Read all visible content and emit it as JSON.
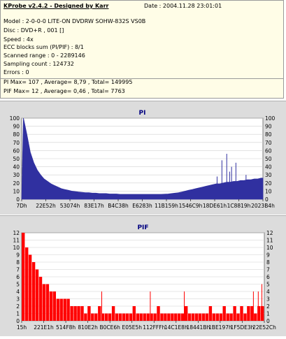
{
  "header": {
    "title": "KProbe v2.4.2 - Designed by Karr",
    "date": "Date : 2004.11.28 23:01:01",
    "lines": [
      "Model : 2-0-0-0 LITE-ON DVDRW SOHW-832S  VS0B",
      "Disc : DVD+R , 001 []",
      "Speed : 4x",
      "ECC blocks sum (PI/PIF) : 8/1",
      "Scanned range : 0 - 2289146",
      "Sampling count : 124732",
      "Errors : 0",
      "PI Max= 107 , Average= 8,79 , Total= 149995",
      "PIF Max= 12 , Average= 0,46 , Total= 7763"
    ]
  },
  "chart_data": [
    {
      "type": "area",
      "title": "PI",
      "color": "#3030a0",
      "ylim": [
        0,
        100
      ],
      "yticks": [
        0,
        10,
        20,
        30,
        40,
        50,
        60,
        70,
        80,
        90,
        100
      ],
      "xtick_labels": [
        "7Dh",
        "22E52h",
        "53074h",
        "83E17h",
        "B4C38h",
        "E6283h",
        "11B159h",
        "1546C9h",
        "18DE61h",
        "1C8819h",
        "2023B4h"
      ],
      "series": [
        {
          "values": [
            100,
            80,
            58,
            45,
            36,
            30,
            25,
            22,
            19,
            17,
            15,
            13,
            12,
            11,
            10,
            9.5,
            9,
            8.5,
            8,
            8,
            7.5,
            7.5,
            7,
            7,
            7,
            6.5,
            6.5,
            6.5,
            6,
            6,
            6,
            6,
            6,
            6,
            6,
            6,
            6,
            6,
            6,
            6,
            6,
            6.2,
            6.5,
            7,
            7.5,
            8,
            9,
            10,
            11,
            12,
            13,
            14,
            15,
            16,
            17,
            18,
            19,
            19,
            20,
            21,
            21,
            22,
            22,
            23,
            23,
            24,
            24,
            25,
            25,
            26
          ]
        }
      ],
      "spikes": [
        {
          "x_frac": 0.85,
          "value": 56
        },
        {
          "x_frac": 0.83,
          "value": 48
        },
        {
          "x_frac": 0.888,
          "value": 45
        },
        {
          "x_frac": 0.87,
          "value": 40
        },
        {
          "x_frac": 0.862,
          "value": 34
        },
        {
          "x_frac": 0.81,
          "value": 28
        },
        {
          "x_frac": 0.93,
          "value": 30
        }
      ]
    },
    {
      "type": "bar",
      "title": "PIF",
      "color": "#ff0000",
      "ylim": [
        0,
        12
      ],
      "yticks": [
        0,
        1,
        2,
        3,
        4,
        5,
        6,
        7,
        8,
        9,
        10,
        11,
        12
      ],
      "xtick_labels": [
        "15h",
        "221E1h",
        "514F8h",
        "810E2h",
        "B0CE6h",
        "E05E5h",
        "112FFFh",
        "14C1E8h",
        "18441Bh",
        "1BE197h",
        "1F5DE3h",
        "22E52Ch"
      ],
      "series": [
        {
          "values": [
            12,
            10,
            9,
            8,
            7,
            6,
            5,
            5,
            4,
            4,
            3,
            3,
            3,
            3,
            2,
            2,
            2,
            2,
            1,
            2,
            1,
            1,
            2,
            1,
            1,
            1,
            2,
            1,
            1,
            1,
            1,
            1,
            2,
            1,
            1,
            1,
            1,
            1,
            1,
            2,
            1,
            1,
            1,
            1,
            1,
            1,
            1,
            2,
            1,
            1,
            1,
            1,
            1,
            1,
            2,
            1,
            1,
            1,
            2,
            1,
            1,
            2,
            1,
            2,
            1,
            2,
            2,
            1,
            2,
            2
          ]
        }
      ],
      "spikes": [
        {
          "x_frac": 0.035,
          "value": 7
        },
        {
          "x_frac": 0.045,
          "value": 6
        },
        {
          "x_frac": 0.33,
          "value": 4
        },
        {
          "x_frac": 0.53,
          "value": 4
        },
        {
          "x_frac": 0.67,
          "value": 4
        },
        {
          "x_frac": 0.955,
          "value": 4
        },
        {
          "x_frac": 0.975,
          "value": 4
        },
        {
          "x_frac": 0.99,
          "value": 5
        }
      ]
    }
  ]
}
